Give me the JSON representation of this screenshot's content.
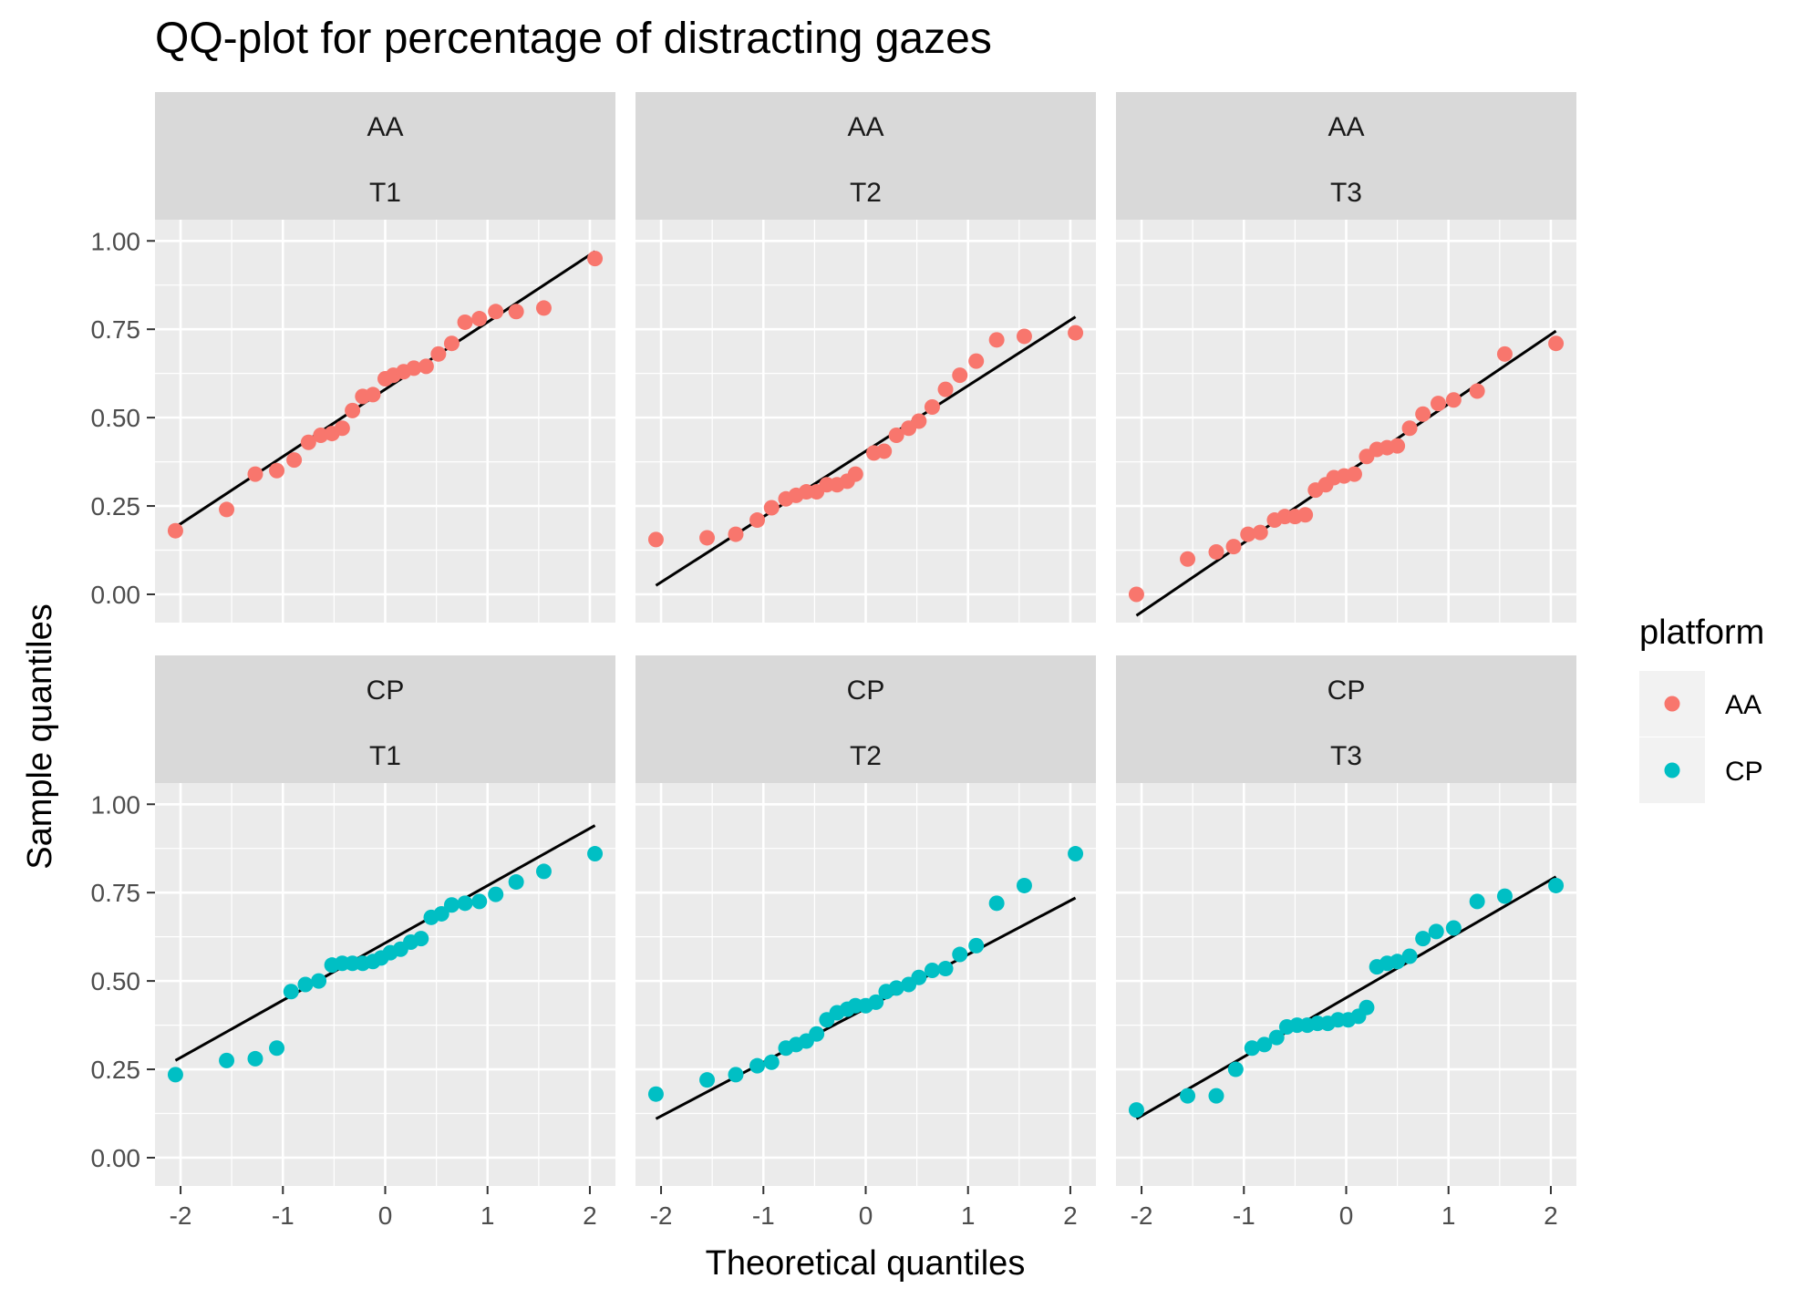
{
  "chart_data": {
    "type": "scatter",
    "title": "QQ-plot for percentage of distracting gazes",
    "xlabel": "Theoretical quantiles",
    "ylabel": "Sample quantiles",
    "xlim": [
      -2.25,
      2.25
    ],
    "ylim": [
      -0.08,
      1.06
    ],
    "x_ticks": [
      -2,
      -1,
      0,
      1,
      2
    ],
    "x_tick_labels": [
      "-2",
      "-1",
      "0",
      "1",
      "2"
    ],
    "y_ticks": [
      0,
      0.25,
      0.5,
      0.75,
      1.0
    ],
    "y_tick_labels": [
      "0.00",
      "0.25",
      "0.50",
      "0.75",
      "1.00"
    ],
    "grid": true,
    "legend": {
      "title": "platform",
      "position": "right",
      "entries": [
        {
          "label": "AA",
          "color": "#F8766D"
        },
        {
          "label": "CP",
          "color": "#00BFC4"
        }
      ]
    },
    "colors": {
      "AA": "#F8766D",
      "CP": "#00BFC4",
      "panel_bg": "#EBEBEB",
      "strip_bg": "#D9D9D9",
      "line": "#000000"
    },
    "panels": [
      {
        "platform": "AA",
        "task": "T1",
        "line": [
          [
            -2.05,
            0.19
          ],
          [
            2.05,
            0.97
          ]
        ],
        "points": [
          [
            -2.05,
            0.18
          ],
          [
            -1.55,
            0.24
          ],
          [
            -1.27,
            0.34
          ],
          [
            -1.06,
            0.35
          ],
          [
            -0.89,
            0.38
          ],
          [
            -0.75,
            0.43
          ],
          [
            -0.63,
            0.45
          ],
          [
            -0.52,
            0.455
          ],
          [
            -0.42,
            0.47
          ],
          [
            -0.32,
            0.52
          ],
          [
            -0.22,
            0.56
          ],
          [
            -0.12,
            0.565
          ],
          [
            0.0,
            0.61
          ],
          [
            0.08,
            0.62
          ],
          [
            0.18,
            0.63
          ],
          [
            0.28,
            0.64
          ],
          [
            0.4,
            0.645
          ],
          [
            0.52,
            0.68
          ],
          [
            0.65,
            0.71
          ],
          [
            0.78,
            0.77
          ],
          [
            0.92,
            0.78
          ],
          [
            1.08,
            0.8
          ],
          [
            1.28,
            0.8
          ],
          [
            1.55,
            0.81
          ],
          [
            2.05,
            0.95
          ]
        ]
      },
      {
        "platform": "AA",
        "task": "T2",
        "line": [
          [
            -2.05,
            0.025
          ],
          [
            2.05,
            0.785
          ]
        ],
        "points": [
          [
            -2.05,
            0.155
          ],
          [
            -1.55,
            0.16
          ],
          [
            -1.27,
            0.17
          ],
          [
            -1.06,
            0.21
          ],
          [
            -0.92,
            0.245
          ],
          [
            -0.78,
            0.27
          ],
          [
            -0.68,
            0.28
          ],
          [
            -0.58,
            0.29
          ],
          [
            -0.48,
            0.29
          ],
          [
            -0.38,
            0.31
          ],
          [
            -0.28,
            0.31
          ],
          [
            -0.18,
            0.32
          ],
          [
            -0.1,
            0.34
          ],
          [
            0.08,
            0.4
          ],
          [
            0.18,
            0.405
          ],
          [
            0.3,
            0.45
          ],
          [
            0.42,
            0.47
          ],
          [
            0.52,
            0.49
          ],
          [
            0.65,
            0.53
          ],
          [
            0.78,
            0.58
          ],
          [
            0.92,
            0.62
          ],
          [
            1.08,
            0.66
          ],
          [
            1.28,
            0.72
          ],
          [
            1.55,
            0.73
          ],
          [
            2.05,
            0.74
          ]
        ]
      },
      {
        "platform": "AA",
        "task": "T3",
        "line": [
          [
            -2.05,
            -0.06
          ],
          [
            2.05,
            0.745
          ]
        ],
        "points": [
          [
            -2.05,
            0.0
          ],
          [
            -1.55,
            0.1
          ],
          [
            -1.27,
            0.12
          ],
          [
            -1.1,
            0.135
          ],
          [
            -0.96,
            0.17
          ],
          [
            -0.84,
            0.175
          ],
          [
            -0.7,
            0.21
          ],
          [
            -0.6,
            0.22
          ],
          [
            -0.5,
            0.22
          ],
          [
            -0.4,
            0.225
          ],
          [
            -0.3,
            0.295
          ],
          [
            -0.2,
            0.31
          ],
          [
            -0.12,
            0.33
          ],
          [
            -0.02,
            0.335
          ],
          [
            0.08,
            0.34
          ],
          [
            0.2,
            0.39
          ],
          [
            0.3,
            0.41
          ],
          [
            0.4,
            0.415
          ],
          [
            0.5,
            0.42
          ],
          [
            0.62,
            0.47
          ],
          [
            0.75,
            0.51
          ],
          [
            0.9,
            0.54
          ],
          [
            1.05,
            0.55
          ],
          [
            1.28,
            0.575
          ],
          [
            1.55,
            0.68
          ],
          [
            2.05,
            0.71
          ]
        ]
      },
      {
        "platform": "CP",
        "task": "T1",
        "line": [
          [
            -2.05,
            0.275
          ],
          [
            2.05,
            0.94
          ]
        ],
        "points": [
          [
            -2.05,
            0.235
          ],
          [
            -1.55,
            0.275
          ],
          [
            -1.27,
            0.28
          ],
          [
            -1.06,
            0.31
          ],
          [
            -0.92,
            0.47
          ],
          [
            -0.78,
            0.49
          ],
          [
            -0.65,
            0.5
          ],
          [
            -0.52,
            0.545
          ],
          [
            -0.42,
            0.55
          ],
          [
            -0.32,
            0.55
          ],
          [
            -0.22,
            0.55
          ],
          [
            -0.12,
            0.555
          ],
          [
            -0.04,
            0.565
          ],
          [
            0.05,
            0.58
          ],
          [
            0.15,
            0.59
          ],
          [
            0.25,
            0.61
          ],
          [
            0.35,
            0.62
          ],
          [
            0.45,
            0.68
          ],
          [
            0.55,
            0.69
          ],
          [
            0.65,
            0.715
          ],
          [
            0.78,
            0.72
          ],
          [
            0.92,
            0.725
          ],
          [
            1.08,
            0.745
          ],
          [
            1.28,
            0.78
          ],
          [
            1.55,
            0.81
          ],
          [
            2.05,
            0.86
          ]
        ]
      },
      {
        "platform": "CP",
        "task": "T2",
        "line": [
          [
            -2.05,
            0.11
          ],
          [
            2.05,
            0.735
          ]
        ],
        "points": [
          [
            -2.05,
            0.18
          ],
          [
            -1.55,
            0.22
          ],
          [
            -1.27,
            0.235
          ],
          [
            -1.06,
            0.26
          ],
          [
            -0.92,
            0.27
          ],
          [
            -0.78,
            0.31
          ],
          [
            -0.68,
            0.32
          ],
          [
            -0.58,
            0.33
          ],
          [
            -0.48,
            0.35
          ],
          [
            -0.38,
            0.39
          ],
          [
            -0.28,
            0.41
          ],
          [
            -0.18,
            0.42
          ],
          [
            -0.1,
            0.43
          ],
          [
            0.0,
            0.43
          ],
          [
            0.1,
            0.44
          ],
          [
            0.2,
            0.47
          ],
          [
            0.3,
            0.48
          ],
          [
            0.42,
            0.49
          ],
          [
            0.52,
            0.51
          ],
          [
            0.65,
            0.53
          ],
          [
            0.78,
            0.535
          ],
          [
            0.92,
            0.575
          ],
          [
            1.08,
            0.6
          ],
          [
            1.28,
            0.72
          ],
          [
            1.55,
            0.77
          ],
          [
            2.05,
            0.86
          ]
        ]
      },
      {
        "platform": "CP",
        "task": "T3",
        "line": [
          [
            -2.05,
            0.11
          ],
          [
            2.05,
            0.795
          ]
        ],
        "points": [
          [
            -2.05,
            0.135
          ],
          [
            -1.55,
            0.175
          ],
          [
            -1.27,
            0.175
          ],
          [
            -1.08,
            0.25
          ],
          [
            -0.92,
            0.31
          ],
          [
            -0.8,
            0.32
          ],
          [
            -0.68,
            0.34
          ],
          [
            -0.58,
            0.37
          ],
          [
            -0.48,
            0.375
          ],
          [
            -0.38,
            0.375
          ],
          [
            -0.28,
            0.38
          ],
          [
            -0.18,
            0.38
          ],
          [
            -0.08,
            0.39
          ],
          [
            0.02,
            0.39
          ],
          [
            0.12,
            0.4
          ],
          [
            0.2,
            0.425
          ],
          [
            0.3,
            0.54
          ],
          [
            0.4,
            0.55
          ],
          [
            0.5,
            0.555
          ],
          [
            0.62,
            0.57
          ],
          [
            0.75,
            0.62
          ],
          [
            0.88,
            0.64
          ],
          [
            1.05,
            0.65
          ],
          [
            1.28,
            0.725
          ],
          [
            1.55,
            0.74
          ],
          [
            2.05,
            0.77
          ]
        ]
      }
    ]
  }
}
